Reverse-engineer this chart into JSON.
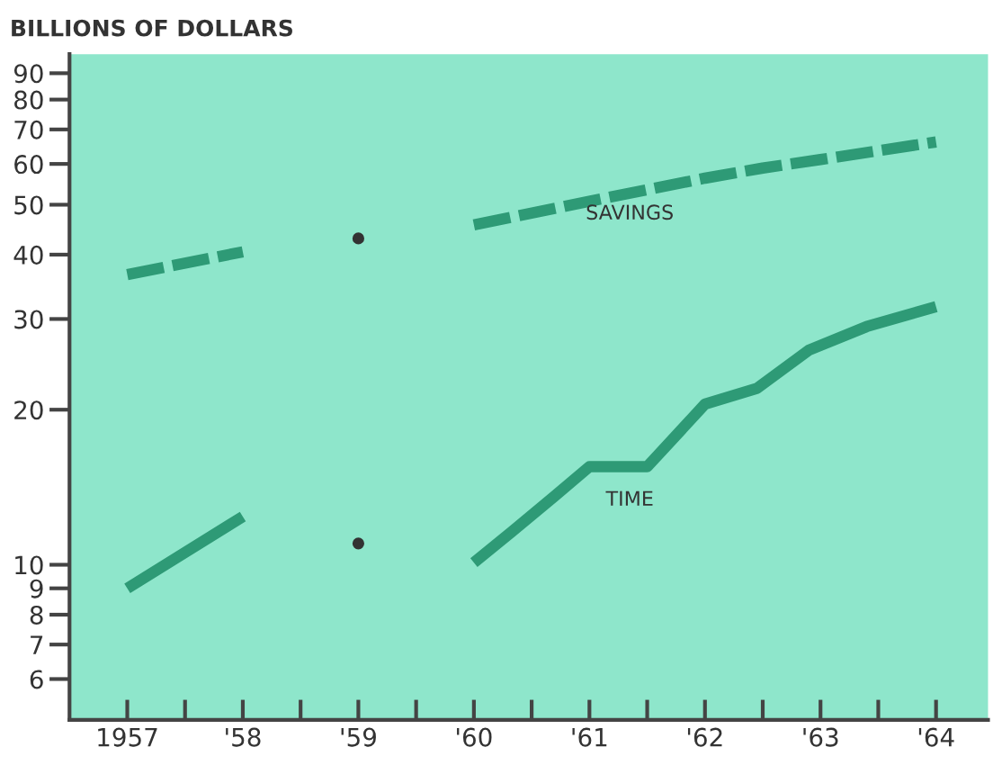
{
  "chart_data": {
    "type": "line",
    "ylabel": "BILLIONS OF DOLLARS",
    "log": "y",
    "grid": false,
    "legend": false,
    "xlim": [
      1956.5,
      1964.45
    ],
    "ylim": [
      5,
      98
    ],
    "xticks": [
      {
        "value": 1957,
        "label": "1957"
      },
      {
        "value": 1957.5,
        "label": null
      },
      {
        "value": 1958,
        "label": "'58"
      },
      {
        "value": 1958.5,
        "label": null
      },
      {
        "value": 1959,
        "label": "'59"
      },
      {
        "value": 1959.5,
        "label": null
      },
      {
        "value": 1960,
        "label": "'60"
      },
      {
        "value": 1960.5,
        "label": null
      },
      {
        "value": 1961,
        "label": "'61"
      },
      {
        "value": 1961.5,
        "label": null
      },
      {
        "value": 1962,
        "label": "'62"
      },
      {
        "value": 1962.5,
        "label": null
      },
      {
        "value": 1963,
        "label": "'63"
      },
      {
        "value": 1963.5,
        "label": null
      },
      {
        "value": 1964,
        "label": "'64"
      }
    ],
    "yticks": [
      6,
      7,
      8,
      9,
      10,
      20,
      30,
      40,
      50,
      60,
      70,
      80,
      90
    ],
    "series": [
      {
        "line_style": "dashed",
        "color": "#2e9a76",
        "x": [
          1957,
          1958,
          1959,
          1960,
          1961,
          1962,
          1962.5,
          1963,
          1964
        ],
        "values": [
          36.6,
          40.5,
          null,
          45.7,
          50.8,
          56.3,
          58.9,
          61.2,
          66.2
        ]
      },
      {
        "line_style": "solid",
        "color": "#2e9a76",
        "x": [
          1957,
          1958,
          1959,
          1960,
          1960.33,
          1960.7,
          1961,
          1961.5,
          1962,
          1962.45,
          1962.9,
          1963.4,
          1964
        ],
        "values": [
          9.0,
          12.4,
          null,
          10.1,
          11.6,
          13.6,
          15.5,
          15.5,
          20.5,
          22.0,
          26.1,
          29.0,
          31.7
        ]
      },
      {
        "type": "scatter",
        "marker": "circle",
        "color": "#333333",
        "x": [
          1959,
          1959
        ],
        "values": [
          43,
          11
        ]
      }
    ],
    "annotations": [
      "SAVINGS",
      "TIME"
    ]
  }
}
